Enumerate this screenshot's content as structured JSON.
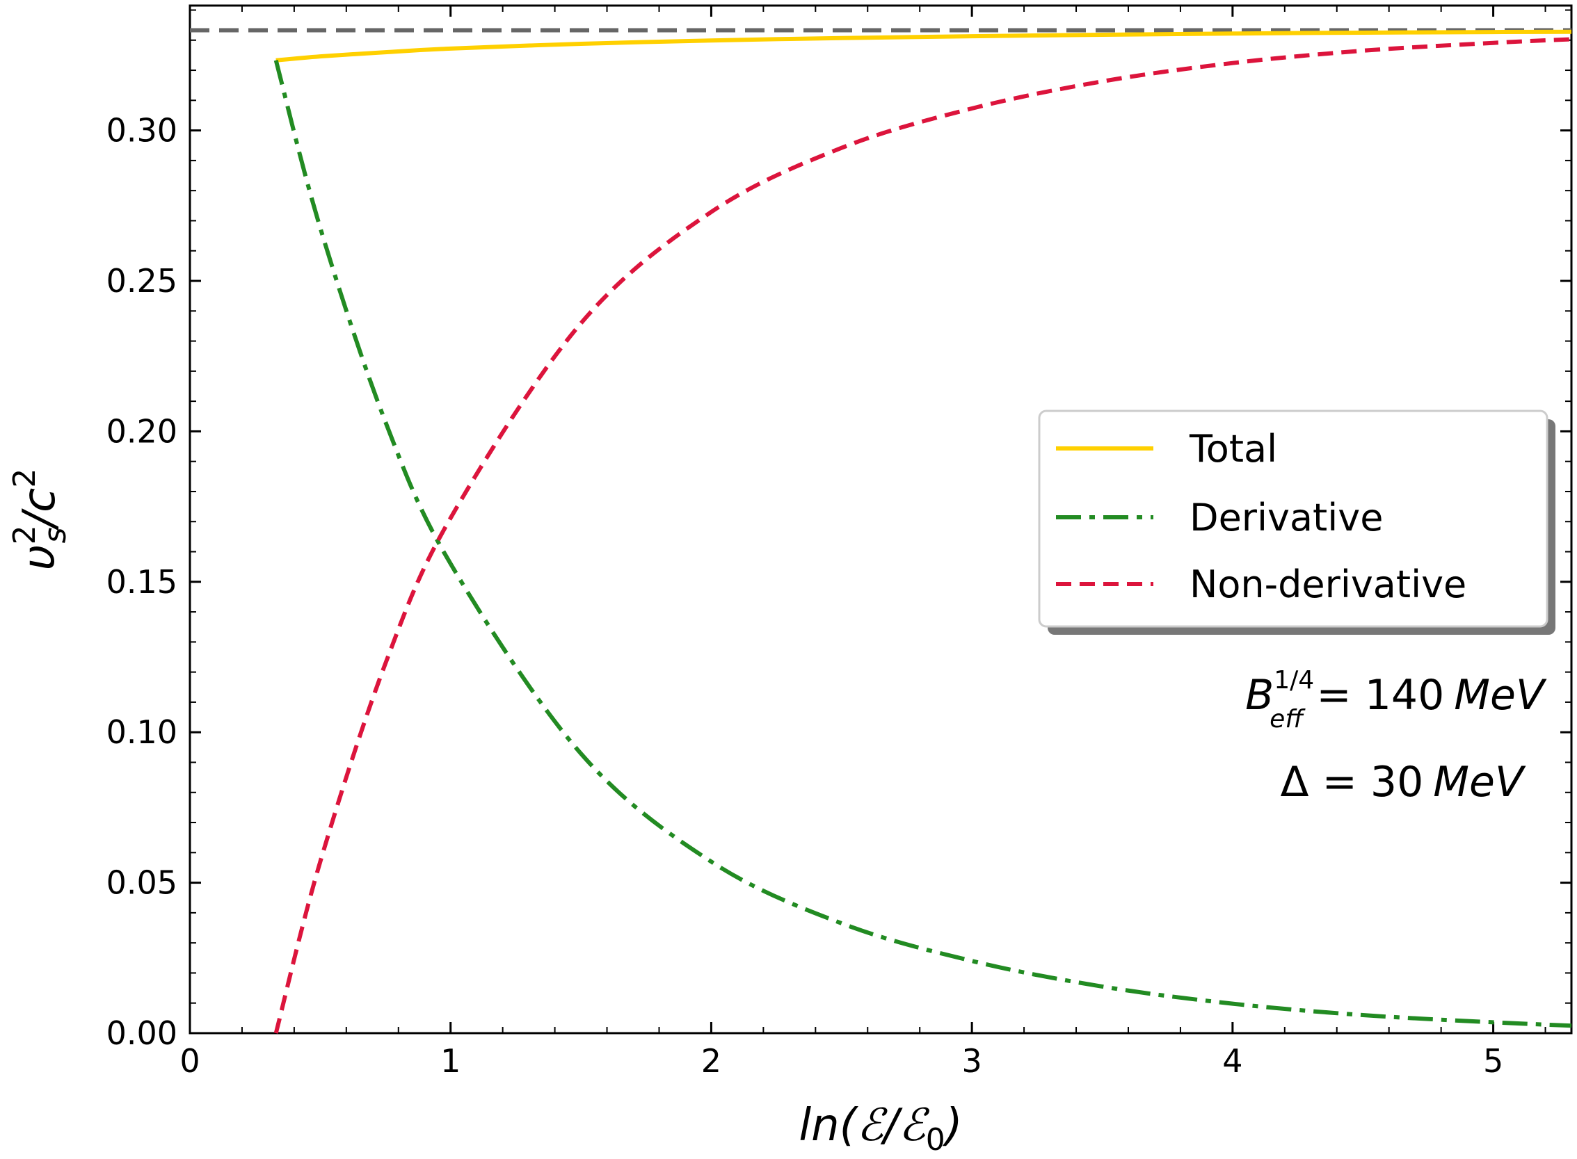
{
  "chart_data": {
    "type": "line",
    "xlabel": "ln(ℰ/ℰ0)",
    "ylabel": "υs²/c²",
    "xlim": [
      0,
      5.3
    ],
    "ylim": [
      0,
      0.3415
    ],
    "xticks": [
      0,
      1,
      2,
      3,
      4,
      5
    ],
    "xtick_labels": [
      "0",
      "1",
      "2",
      "3",
      "4",
      "5"
    ],
    "yticks": [
      0.0,
      0.05,
      0.1,
      0.15,
      0.2,
      0.25,
      0.3
    ],
    "ytick_labels": [
      "0.00",
      "0.05",
      "0.10",
      "0.15",
      "0.20",
      "0.25",
      "0.30"
    ],
    "grid": false,
    "legend_position": "center-right",
    "reference_line": {
      "y": 0.3333,
      "style": "dashed",
      "color": "#666666"
    },
    "series": [
      {
        "name": "Total",
        "color": "#FFD000",
        "style": "solid",
        "x": [
          0.33,
          0.5,
          0.75,
          1.0,
          1.5,
          2.0,
          2.5,
          3.0,
          3.5,
          4.0,
          4.5,
          5.0,
          5.3
        ],
        "y": [
          0.3233,
          0.3246,
          0.326,
          0.3272,
          0.3288,
          0.3299,
          0.3307,
          0.3313,
          0.3318,
          0.3322,
          0.3325,
          0.3327,
          0.3328
        ]
      },
      {
        "name": "Derivative",
        "color": "#228B22",
        "style": "dashdot",
        "x": [
          0.33,
          0.5,
          0.75,
          1.0,
          1.5,
          2.0,
          2.5,
          3.0,
          3.5,
          4.0,
          4.5,
          5.0,
          5.3
        ],
        "y": [
          0.3233,
          0.2676,
          0.2032,
          0.156,
          0.0929,
          0.057,
          0.0365,
          0.024,
          0.0155,
          0.0098,
          0.006,
          0.0036,
          0.0025
        ]
      },
      {
        "name": "Non-derivative",
        "color": "#DC143C",
        "style": "dashed",
        "x": [
          0.33,
          0.5,
          0.75,
          1.0,
          1.5,
          2.0,
          2.5,
          3.0,
          3.5,
          4.0,
          4.5,
          5.0,
          5.3
        ],
        "y": [
          0.0,
          0.057,
          0.1228,
          0.1712,
          0.2359,
          0.2729,
          0.2942,
          0.3073,
          0.3163,
          0.3224,
          0.3265,
          0.3291,
          0.3303
        ]
      }
    ],
    "annotations": [
      "B_eff^{1/4} = 140 MeV",
      "Δ = 30 MeV"
    ]
  },
  "legend": {
    "items": [
      {
        "label": "Total"
      },
      {
        "label": "Derivative"
      },
      {
        "label": "Non-derivative"
      }
    ]
  },
  "annotations": {
    "beff_symbol": "B",
    "beff_sup": "1/4",
    "beff_sub": "eff",
    "beff_value": " = 140",
    "beff_unit": "MeV",
    "delta_prefix": "Δ = 30",
    "delta_unit": "MeV"
  },
  "axis_titles": {
    "x_prefix": "ln(",
    "x_curly": "ℰ",
    "x_slash": "/",
    "x_curly2": "ℰ",
    "x_sub": "0",
    "x_suffix": ")",
    "y_main": "υ",
    "y_sup": "2",
    "y_sub": "s",
    "y_slash": "/c",
    "y_sup2": "2"
  }
}
